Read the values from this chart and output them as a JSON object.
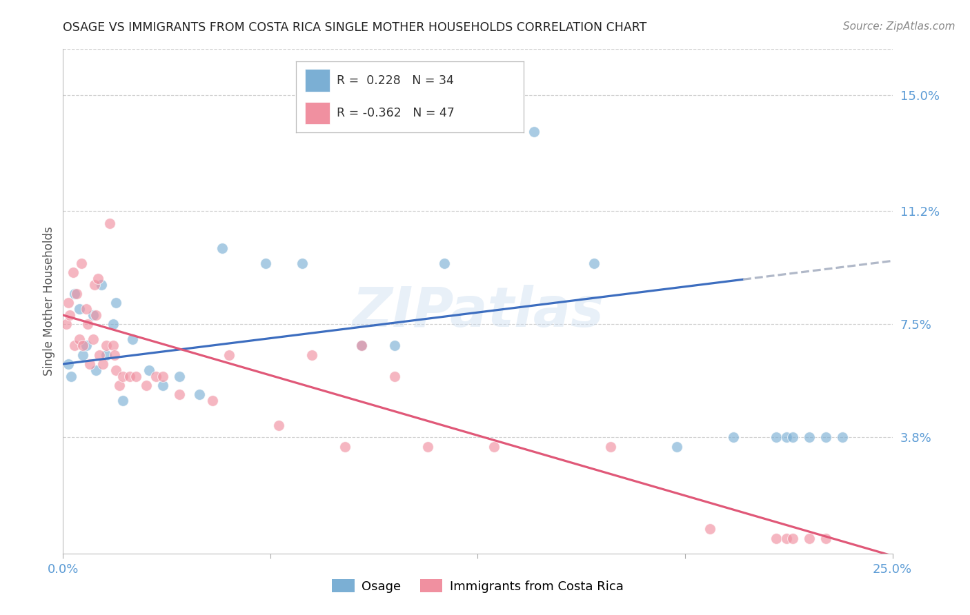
{
  "title": "OSAGE VS IMMIGRANTS FROM COSTA RICA SINGLE MOTHER HOUSEHOLDS CORRELATION CHART",
  "source": "Source: ZipAtlas.com",
  "ylabel": "Single Mother Households",
  "right_yticks": [
    3.8,
    7.5,
    11.2,
    15.0
  ],
  "right_ytick_labels": [
    "3.8%",
    "7.5%",
    "11.2%",
    "15.0%"
  ],
  "xlim": [
    0.0,
    25.0
  ],
  "ylim": [
    0.0,
    16.5
  ],
  "osage_color": "#7bafd4",
  "costa_rica_color": "#f090a0",
  "osage_line_color": "#3c6dbf",
  "costa_rica_line_color": "#e05878",
  "dashed_line_color": "#b0b8c8",
  "background_color": "#ffffff",
  "grid_color": "#cccccc",
  "title_color": "#222222",
  "axis_label_color": "#5b9bd5",
  "watermark": "ZIPatlas",
  "osage_R": 0.228,
  "osage_N": 34,
  "costa_R": -0.362,
  "costa_N": 47,
  "osage_x": [
    0.15,
    0.25,
    0.35,
    0.5,
    0.6,
    0.7,
    0.9,
    1.0,
    1.15,
    1.3,
    1.5,
    1.6,
    1.8,
    2.1,
    2.6,
    3.0,
    3.5,
    4.1,
    4.8,
    6.1,
    7.2,
    9.0,
    10.0,
    11.5,
    14.2,
    16.0,
    18.5,
    20.2,
    21.5,
    21.8,
    22.0,
    22.5,
    23.0,
    23.5
  ],
  "osage_y": [
    6.2,
    5.8,
    8.5,
    8.0,
    6.5,
    6.8,
    7.8,
    6.0,
    8.8,
    6.5,
    7.5,
    8.2,
    5.0,
    7.0,
    6.0,
    5.5,
    5.8,
    5.2,
    10.0,
    9.5,
    9.5,
    6.8,
    6.8,
    9.5,
    13.8,
    9.5,
    3.5,
    3.8,
    3.8,
    3.8,
    3.8,
    3.8,
    3.8,
    3.8
  ],
  "costa_rica_x": [
    0.1,
    0.15,
    0.2,
    0.3,
    0.35,
    0.4,
    0.5,
    0.55,
    0.6,
    0.7,
    0.75,
    0.8,
    0.9,
    0.95,
    1.0,
    1.05,
    1.1,
    1.2,
    1.3,
    1.4,
    1.5,
    1.55,
    1.6,
    1.7,
    1.8,
    2.0,
    2.2,
    2.5,
    2.8,
    3.0,
    3.5,
    4.5,
    5.0,
    6.5,
    7.5,
    8.5,
    9.0,
    10.0,
    11.0,
    13.0,
    16.5,
    19.5,
    21.5,
    21.8,
    22.0,
    22.5,
    23.0
  ],
  "costa_rica_y": [
    7.5,
    8.2,
    7.8,
    9.2,
    6.8,
    8.5,
    7.0,
    9.5,
    6.8,
    8.0,
    7.5,
    6.2,
    7.0,
    8.8,
    7.8,
    9.0,
    6.5,
    6.2,
    6.8,
    10.8,
    6.8,
    6.5,
    6.0,
    5.5,
    5.8,
    5.8,
    5.8,
    5.5,
    5.8,
    5.8,
    5.2,
    5.0,
    6.5,
    4.2,
    6.5,
    3.5,
    6.8,
    5.8,
    3.5,
    3.5,
    3.5,
    0.8,
    0.5,
    0.5,
    0.5,
    0.5,
    0.5
  ]
}
